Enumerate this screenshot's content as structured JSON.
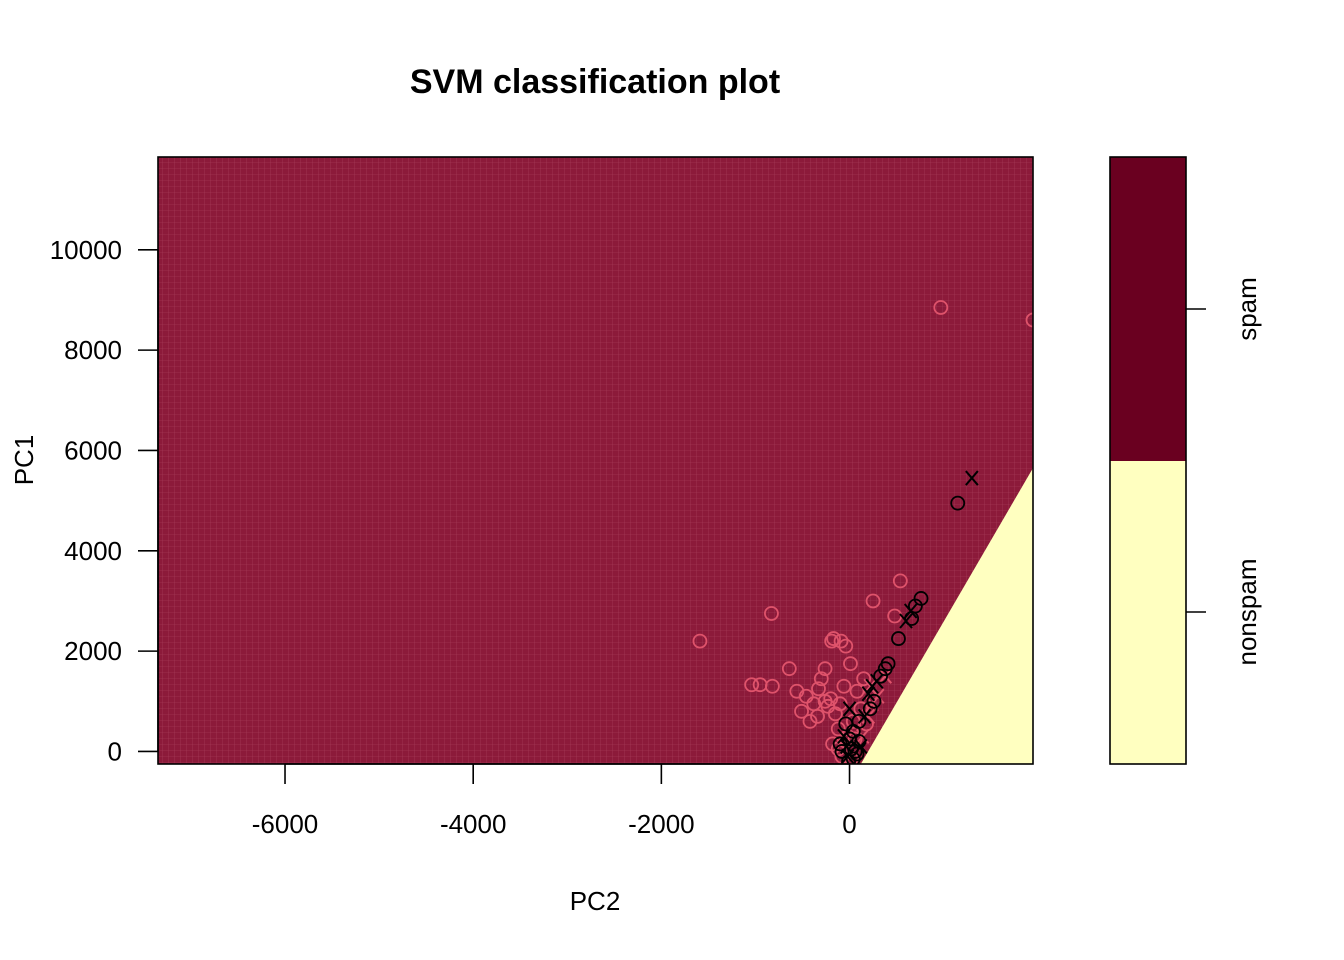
{
  "chart_data": {
    "type": "scatter",
    "title": "SVM classification plot",
    "xlabel": "PC2",
    "ylabel": "PC1",
    "xlim": [
      -7350,
      1950
    ],
    "ylim": [
      -250,
      11850
    ],
    "x_ticks": [
      -6000,
      -4000,
      -2000,
      0
    ],
    "x_tick_labels": [
      "-6000",
      "-4000",
      "-2000",
      "0"
    ],
    "y_ticks": [
      0,
      2000,
      4000,
      6000,
      8000,
      10000
    ],
    "y_tick_labels": [
      "0",
      "2000",
      "4000",
      "6000",
      "8000",
      "10000"
    ],
    "grid": false,
    "legend": "right",
    "classes": [
      {
        "name": "spam",
        "color": "#6a0020"
      },
      {
        "name": "nonspam",
        "color": "#ffffc0"
      }
    ],
    "decision_boundary": {
      "description": "nonspam region lower-right, boundary line from (PC2, PC1) to (PC2, PC1)",
      "from": [
        120,
        -250
      ],
      "to": [
        1950,
        5650
      ]
    },
    "colors": {
      "spam_region": "#8c1a3a",
      "nonspam_region": "#ffffc0",
      "spam_points": "#df536b",
      "nonspam_points": "#000000"
    },
    "point_symbols": {
      "data": "o",
      "support_vector": "x"
    },
    "series": [
      {
        "color": "#df536b",
        "points": [
          {
            "x": 970,
            "y": 8850,
            "m": "o"
          },
          {
            "x": 1950,
            "y": 8600,
            "m": "o"
          },
          {
            "x": -1590,
            "y": 2200,
            "m": "o"
          },
          {
            "x": -830,
            "y": 2750,
            "m": "o"
          },
          {
            "x": -1040,
            "y": 1330,
            "m": "o"
          },
          {
            "x": -950,
            "y": 1330,
            "m": "o"
          },
          {
            "x": -820,
            "y": 1300,
            "m": "o"
          },
          {
            "x": -640,
            "y": 1650,
            "m": "o"
          },
          {
            "x": -560,
            "y": 1200,
            "m": "o"
          },
          {
            "x": -510,
            "y": 800,
            "m": "o"
          },
          {
            "x": -460,
            "y": 1100,
            "m": "o"
          },
          {
            "x": -420,
            "y": 600,
            "m": "o"
          },
          {
            "x": -380,
            "y": 950,
            "m": "o"
          },
          {
            "x": -330,
            "y": 1250,
            "m": "o"
          },
          {
            "x": -300,
            "y": 1450,
            "m": "o"
          },
          {
            "x": -260,
            "y": 1650,
            "m": "o"
          },
          {
            "x": -230,
            "y": 900,
            "m": "o"
          },
          {
            "x": -190,
            "y": 2200,
            "m": "o"
          },
          {
            "x": -170,
            "y": 2250,
            "m": "o"
          },
          {
            "x": -150,
            "y": 750,
            "m": "o"
          },
          {
            "x": -120,
            "y": 450,
            "m": "o"
          },
          {
            "x": -90,
            "y": 2200,
            "m": "o"
          },
          {
            "x": -60,
            "y": 1300,
            "m": "o"
          },
          {
            "x": -40,
            "y": 2100,
            "m": "o"
          },
          {
            "x": -20,
            "y": 300,
            "m": "o"
          },
          {
            "x": 10,
            "y": 1750,
            "m": "o"
          },
          {
            "x": 40,
            "y": 600,
            "m": "o"
          },
          {
            "x": 80,
            "y": 1200,
            "m": "o"
          },
          {
            "x": 120,
            "y": 850,
            "m": "o"
          },
          {
            "x": 150,
            "y": 1450,
            "m": "o"
          },
          {
            "x": 180,
            "y": 550,
            "m": "o"
          },
          {
            "x": 250,
            "y": 3000,
            "m": "o"
          },
          {
            "x": 480,
            "y": 2700,
            "m": "o"
          },
          {
            "x": 540,
            "y": 3400,
            "m": "o"
          },
          {
            "x": -180,
            "y": 150,
            "m": "o"
          },
          {
            "x": -120,
            "y": 50,
            "m": "o"
          },
          {
            "x": -80,
            "y": -100,
            "m": "o"
          },
          {
            "x": -40,
            "y": 200,
            "m": "o"
          },
          {
            "x": 20,
            "y": -150,
            "m": "o"
          },
          {
            "x": -260,
            "y": 1000,
            "m": "o"
          },
          {
            "x": -340,
            "y": 700,
            "m": "o"
          },
          {
            "x": -200,
            "y": 1050,
            "m": "o"
          },
          {
            "x": -100,
            "y": 950,
            "m": "o"
          },
          {
            "x": 60,
            "y": 250,
            "m": "o"
          },
          {
            "x": 140,
            "y": 300,
            "m": "x"
          },
          {
            "x": 200,
            "y": 700,
            "m": "x"
          },
          {
            "x": 240,
            "y": 950,
            "m": "x"
          },
          {
            "x": 300,
            "y": 1100,
            "m": "x"
          },
          {
            "x": 220,
            "y": 1300,
            "m": "x"
          },
          {
            "x": 380,
            "y": 1500,
            "m": "x"
          }
        ]
      },
      {
        "color": "#000000",
        "points": [
          {
            "x": 1300,
            "y": 5450,
            "m": "x"
          },
          {
            "x": 1150,
            "y": 4950,
            "m": "o"
          },
          {
            "x": 760,
            "y": 3050,
            "m": "o"
          },
          {
            "x": 700,
            "y": 2900,
            "m": "o"
          },
          {
            "x": 650,
            "y": 2800,
            "m": "x"
          },
          {
            "x": 660,
            "y": 2650,
            "m": "o"
          },
          {
            "x": 600,
            "y": 2600,
            "m": "x"
          },
          {
            "x": 520,
            "y": 2250,
            "m": "o"
          },
          {
            "x": 410,
            "y": 1750,
            "m": "o"
          },
          {
            "x": 380,
            "y": 1650,
            "m": "o"
          },
          {
            "x": 330,
            "y": 1500,
            "m": "o"
          },
          {
            "x": 290,
            "y": 1400,
            "m": "x"
          },
          {
            "x": 240,
            "y": 1300,
            "m": "x"
          },
          {
            "x": 200,
            "y": 1150,
            "m": "x"
          },
          {
            "x": 260,
            "y": 1000,
            "m": "o"
          },
          {
            "x": 220,
            "y": 850,
            "m": "o"
          },
          {
            "x": 160,
            "y": 700,
            "m": "x"
          },
          {
            "x": 100,
            "y": 600,
            "m": "o"
          },
          {
            "x": 0,
            "y": 850,
            "m": "x"
          },
          {
            "x": -40,
            "y": 550,
            "m": "o"
          },
          {
            "x": 40,
            "y": 400,
            "m": "o"
          },
          {
            "x": -60,
            "y": 300,
            "m": "x"
          },
          {
            "x": 0,
            "y": 250,
            "m": "o"
          },
          {
            "x": -100,
            "y": 150,
            "m": "o"
          },
          {
            "x": -30,
            "y": 100,
            "m": "x"
          },
          {
            "x": 20,
            "y": 50,
            "m": "o"
          },
          {
            "x": 60,
            "y": 0,
            "m": "o"
          },
          {
            "x": -80,
            "y": 0,
            "m": "o"
          },
          {
            "x": -20,
            "y": -100,
            "m": "x"
          },
          {
            "x": 40,
            "y": -150,
            "m": "o"
          },
          {
            "x": 100,
            "y": 200,
            "m": "o"
          },
          {
            "x": 120,
            "y": 100,
            "m": "x"
          },
          {
            "x": -10,
            "y": -200,
            "m": "o"
          },
          {
            "x": 80,
            "y": -50,
            "m": "o"
          }
        ]
      }
    ]
  }
}
